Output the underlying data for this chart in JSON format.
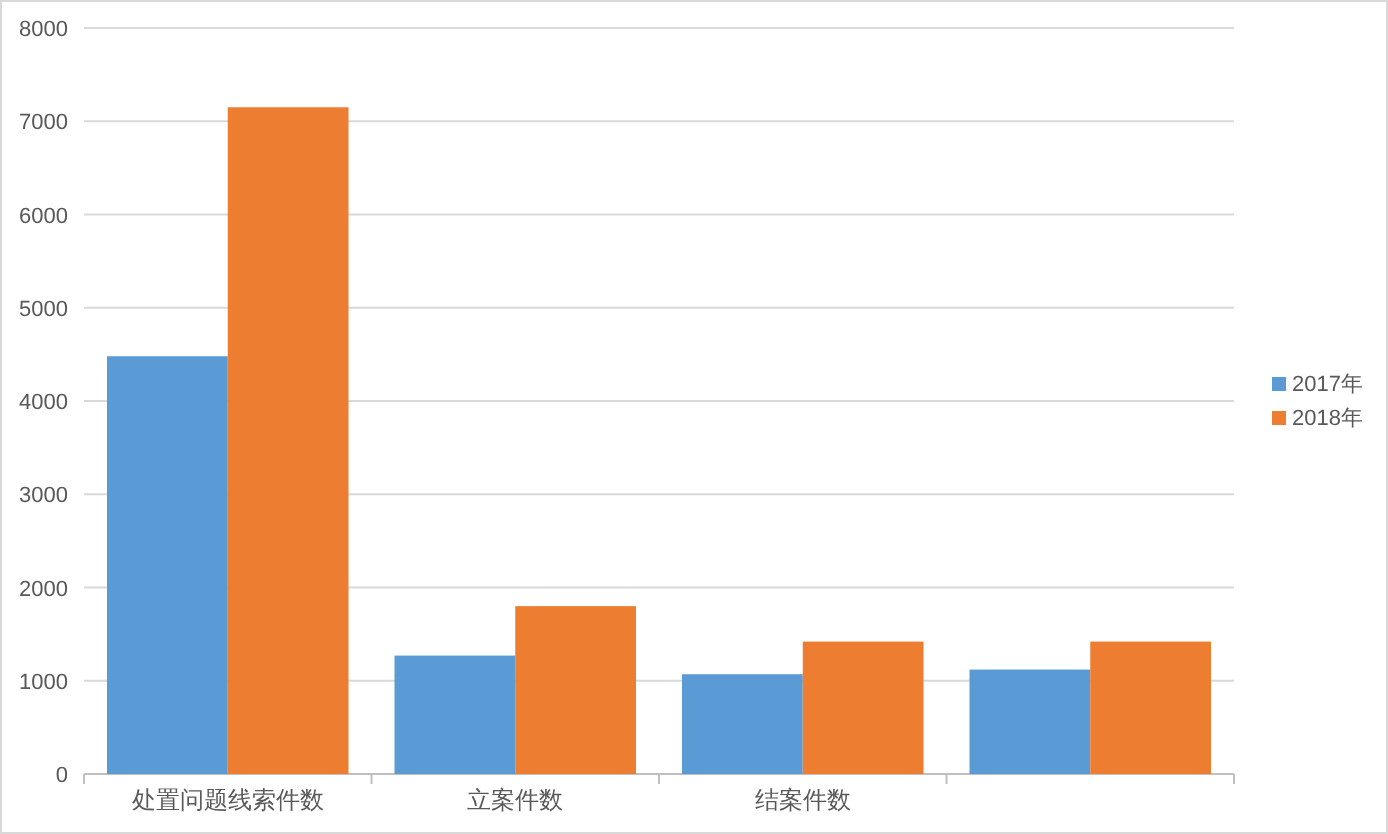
{
  "chart_data": {
    "type": "bar",
    "categories": [
      "处置问题线索件数",
      "立案件数",
      "结案件数",
      null
    ],
    "series": [
      {
        "name": "2017年",
        "color": "#5b9bd5",
        "values": [
          4480,
          1270,
          1070,
          1120
        ]
      },
      {
        "name": "2018年",
        "color": "#ed7d31",
        "values": [
          7150,
          1800,
          1420,
          1420
        ]
      }
    ],
    "ylim": [
      0,
      8000
    ],
    "yticks": [
      0,
      1000,
      2000,
      3000,
      4000,
      5000,
      6000,
      7000,
      8000
    ],
    "grid": "y",
    "legend": "right"
  }
}
